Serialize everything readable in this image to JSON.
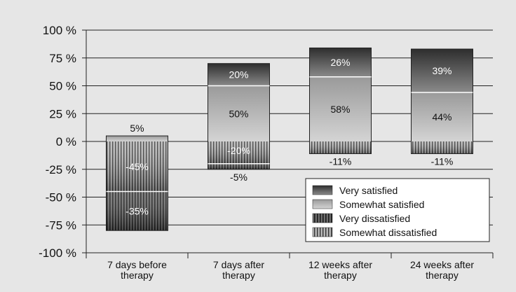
{
  "chart_data": {
    "type": "bar",
    "stacked": true,
    "title": "",
    "xlabel": "",
    "ylabel": "",
    "ylim": [
      -100,
      100
    ],
    "yticks": [
      100,
      75,
      50,
      25,
      0,
      -25,
      -50,
      -75,
      -100
    ],
    "ytick_labels": [
      "100 %",
      "75 %",
      "50 %",
      "25 %",
      "0 %",
      "-25 %",
      "-50 %",
      "-75 %",
      "-100 %"
    ],
    "categories": [
      [
        "7 days before",
        "therapy"
      ],
      [
        "7 days after",
        "therapy"
      ],
      [
        "12 weeks after",
        "therapy"
      ],
      [
        "24 weeks after",
        "therapy"
      ]
    ],
    "series": [
      {
        "name": "Very satisfied",
        "pattern": "dark",
        "values": [
          0,
          20,
          26,
          39
        ],
        "labels": [
          "",
          "20%",
          "26%",
          "39%"
        ]
      },
      {
        "name": "Somewhat satisfied",
        "pattern": "light",
        "values": [
          5,
          50,
          58,
          44
        ],
        "labels": [
          "5%",
          "50%",
          "58%",
          "44%"
        ]
      },
      {
        "name": "Very dissatisfied",
        "pattern": "dark-striped",
        "values": [
          -35,
          -5,
          0,
          0
        ],
        "labels": [
          "-35%",
          "-5%",
          "",
          ""
        ]
      },
      {
        "name": "Somewhat dissatisfied",
        "pattern": "light-striped",
        "values": [
          -45,
          -20,
          -11,
          -11
        ],
        "labels": [
          "-45%",
          "-20%",
          "-11%",
          "-11%"
        ]
      }
    ],
    "grid": true,
    "legend_position": "bottom-right",
    "colors": {
      "background": "#e6e6e6",
      "dark": "#3a3a3a",
      "light": "#c8c8c8",
      "stripe": "#1a1a1a"
    }
  }
}
